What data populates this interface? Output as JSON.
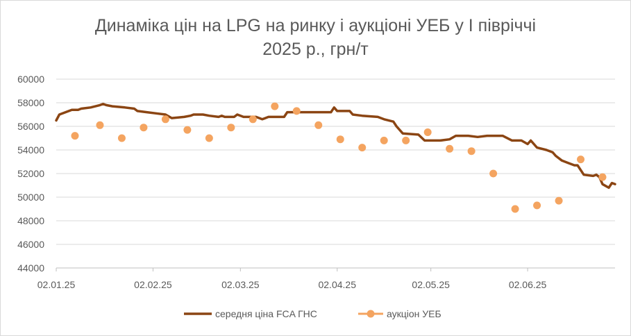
{
  "chart_data": {
    "type": "line",
    "title_line1": "Динаміка цін на LPG на ринку і аукціоні УЕБ у І півріччі",
    "title_line2": "2025 р., грн/т",
    "ylim": [
      44000,
      60000
    ],
    "y_ticks": [
      "60000",
      "58000",
      "56000",
      "54000",
      "52000",
      "50000",
      "48000",
      "46000",
      "44000"
    ],
    "x_range": [
      "2025-01-02",
      "2025-06-30"
    ],
    "x_ticks": [
      {
        "date": "2025-01-02",
        "label": "02.01.25"
      },
      {
        "date": "2025-02-02",
        "label": "02.02.25"
      },
      {
        "date": "2025-03-02",
        "label": "02.03.25"
      },
      {
        "date": "2025-04-02",
        "label": "02.04.25"
      },
      {
        "date": "2025-05-02",
        "label": "02.05.25"
      },
      {
        "date": "2025-06-02",
        "label": "02.06.25"
      }
    ],
    "colors": {
      "line": "#8B4513",
      "dots": "#F4A460",
      "axis": "#bfbfbf",
      "grid": "#d9d9d9"
    },
    "series": [
      {
        "name": "середня ціна FCA ГНС",
        "kind": "line",
        "points": [
          [
            "2025-01-02",
            56500
          ],
          [
            "2025-01-03",
            57000
          ],
          [
            "2025-01-05",
            57200
          ],
          [
            "2025-01-07",
            57400
          ],
          [
            "2025-01-09",
            57400
          ],
          [
            "2025-01-10",
            57500
          ],
          [
            "2025-01-13",
            57600
          ],
          [
            "2025-01-16",
            57800
          ],
          [
            "2025-01-17",
            57900
          ],
          [
            "2025-01-18",
            57800
          ],
          [
            "2025-01-20",
            57700
          ],
          [
            "2025-01-24",
            57600
          ],
          [
            "2025-01-27",
            57500
          ],
          [
            "2025-01-28",
            57300
          ],
          [
            "2025-01-31",
            57200
          ],
          [
            "2025-02-03",
            57100
          ],
          [
            "2025-02-06",
            57000
          ],
          [
            "2025-02-08",
            56700
          ],
          [
            "2025-02-12",
            56800
          ],
          [
            "2025-02-14",
            56900
          ],
          [
            "2025-02-15",
            57000
          ],
          [
            "2025-02-18",
            57000
          ],
          [
            "2025-02-20",
            56900
          ],
          [
            "2025-02-23",
            56800
          ],
          [
            "2025-02-24",
            56900
          ],
          [
            "2025-02-25",
            56800
          ],
          [
            "2025-02-27",
            56800
          ],
          [
            "2025-02-28",
            56800
          ],
          [
            "2025-03-01",
            57000
          ],
          [
            "2025-03-03",
            56800
          ],
          [
            "2025-03-07",
            56800
          ],
          [
            "2025-03-09",
            56600
          ],
          [
            "2025-03-11",
            56800
          ],
          [
            "2025-03-16",
            56800
          ],
          [
            "2025-03-17",
            57200
          ],
          [
            "2025-03-28",
            57200
          ],
          [
            "2025-03-31",
            57200
          ],
          [
            "2025-04-01",
            57600
          ],
          [
            "2025-04-02",
            57300
          ],
          [
            "2025-04-05",
            57300
          ],
          [
            "2025-04-06",
            57300
          ],
          [
            "2025-04-07",
            57000
          ],
          [
            "2025-04-10",
            56900
          ],
          [
            "2025-04-15",
            56800
          ],
          [
            "2025-04-17",
            56600
          ],
          [
            "2025-04-20",
            56400
          ],
          [
            "2025-04-21",
            56000
          ],
          [
            "2025-04-23",
            55400
          ],
          [
            "2025-04-28",
            55300
          ],
          [
            "2025-04-30",
            54800
          ],
          [
            "2025-05-05",
            54800
          ],
          [
            "2025-05-08",
            54900
          ],
          [
            "2025-05-10",
            55200
          ],
          [
            "2025-05-14",
            55200
          ],
          [
            "2025-05-17",
            55100
          ],
          [
            "2025-05-20",
            55200
          ],
          [
            "2025-05-25",
            55200
          ],
          [
            "2025-05-28",
            54800
          ],
          [
            "2025-05-31",
            54800
          ],
          [
            "2025-06-02",
            54500
          ],
          [
            "2025-06-03",
            54800
          ],
          [
            "2025-06-05",
            54200
          ],
          [
            "2025-06-08",
            54000
          ],
          [
            "2025-06-10",
            53800
          ],
          [
            "2025-06-11",
            53500
          ],
          [
            "2025-06-13",
            53100
          ],
          [
            "2025-06-15",
            52900
          ],
          [
            "2025-06-17",
            52700
          ],
          [
            "2025-06-18",
            52700
          ],
          [
            "2025-06-20",
            51900
          ],
          [
            "2025-06-23",
            51800
          ],
          [
            "2025-06-24",
            51900
          ],
          [
            "2025-06-25",
            51700
          ],
          [
            "2025-06-26",
            51100
          ],
          [
            "2025-06-28",
            50800
          ],
          [
            "2025-06-29",
            51200
          ],
          [
            "2025-06-30",
            51100
          ]
        ]
      },
      {
        "name": "аукціон УЕБ",
        "kind": "scatter",
        "points": [
          [
            "2025-01-08",
            55200
          ],
          [
            "2025-01-16",
            56100
          ],
          [
            "2025-01-23",
            55000
          ],
          [
            "2025-01-30",
            55900
          ],
          [
            "2025-02-06",
            56600
          ],
          [
            "2025-02-13",
            55700
          ],
          [
            "2025-02-20",
            55000
          ],
          [
            "2025-02-27",
            55900
          ],
          [
            "2025-03-06",
            56600
          ],
          [
            "2025-03-13",
            57700
          ],
          [
            "2025-03-20",
            57300
          ],
          [
            "2025-03-27",
            56100
          ],
          [
            "2025-04-03",
            54900
          ],
          [
            "2025-04-10",
            54200
          ],
          [
            "2025-04-17",
            54800
          ],
          [
            "2025-04-24",
            54800
          ],
          [
            "2025-05-01",
            55500
          ],
          [
            "2025-05-08",
            54100
          ],
          [
            "2025-05-15",
            53900
          ],
          [
            "2025-05-22",
            52000
          ],
          [
            "2025-05-29",
            49000
          ],
          [
            "2025-06-05",
            49300
          ],
          [
            "2025-06-12",
            49700
          ],
          [
            "2025-06-19",
            53200
          ],
          [
            "2025-06-26",
            51700
          ]
        ]
      }
    ],
    "legend": [
      "середня ціна FCA ГНС",
      "аукціон УЕБ"
    ],
    "legend_position": "bottom",
    "grid": true
  }
}
